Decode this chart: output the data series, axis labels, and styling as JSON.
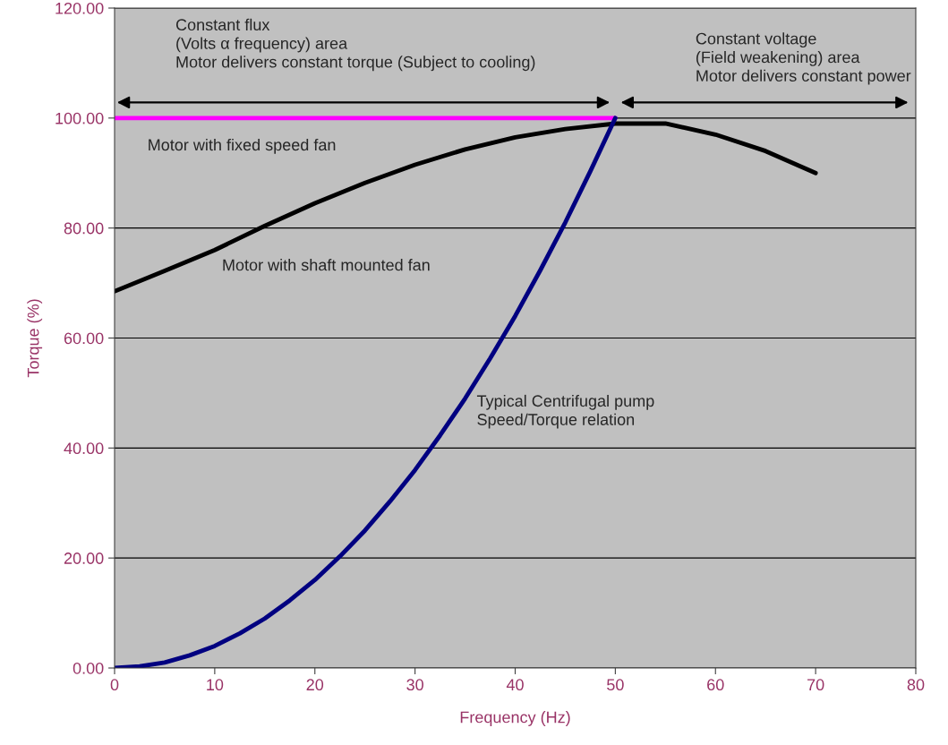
{
  "chart_data": {
    "type": "line",
    "xlabel": "Frequency (Hz)",
    "ylabel": "Torque (%)",
    "xlim": [
      0,
      80
    ],
    "xticks": [
      0,
      10,
      20,
      30,
      40,
      50,
      60,
      70,
      80
    ],
    "ylim": [
      0,
      120
    ],
    "yticks": [
      {
        "value": 0,
        "label": "0.00"
      },
      {
        "value": 20,
        "label": "20.00"
      },
      {
        "value": 40,
        "label": "40.00"
      },
      {
        "value": 60,
        "label": "60.00"
      },
      {
        "value": 80,
        "label": "80.00"
      },
      {
        "value": 100,
        "label": "100.00"
      },
      {
        "value": 120,
        "label": "120.00"
      }
    ],
    "grid": "y",
    "legend": false,
    "marker": "none",
    "line_style": "solid",
    "series": [
      {
        "color": "#ff00ff",
        "x": [
          0,
          50
        ],
        "values": [
          100,
          100
        ]
      },
      {
        "color": "#000000",
        "x": [
          0,
          5,
          10,
          15,
          20,
          25,
          30,
          35,
          40,
          45,
          50,
          55,
          60,
          65,
          70
        ],
        "values": [
          68.5,
          72.2,
          76,
          80.4,
          84.5,
          88.2,
          91.5,
          94.3,
          96.5,
          98,
          99,
          99,
          97,
          94,
          90
        ]
      },
      {
        "color": "#000080",
        "x": [
          0,
          2.5,
          5,
          7.5,
          10,
          12.5,
          15,
          17.5,
          20,
          22.5,
          25,
          27.5,
          30,
          32.5,
          35,
          37.5,
          40,
          42.5,
          45,
          47.5,
          50
        ],
        "values": [
          0,
          0.3,
          1,
          2.3,
          4,
          6.3,
          9,
          12.3,
          16,
          20.3,
          25,
          30.3,
          36,
          42.3,
          49,
          56.3,
          64,
          72.3,
          81,
          90.3,
          100
        ]
      }
    ],
    "annotations": [
      "Constant flux\n(Volts α frequency) area\nMotor delivers constant torque (Subject to cooling)",
      "Constant voltage\n(Field weakening) area\nMotor delivers constant power",
      "Motor with fixed speed fan",
      "Motor with shaft mounted fan",
      "Typical Centrifugal pump\nSpeed/Torque relation"
    ]
  }
}
